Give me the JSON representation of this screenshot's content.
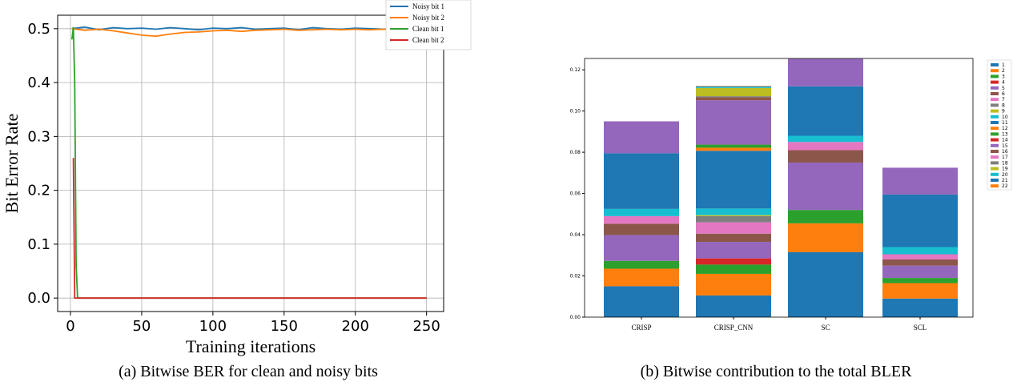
{
  "chart_data": [
    {
      "type": "line",
      "caption": "(a) Bitwise BER for clean and noisy bits",
      "xlabel": "Training iterations",
      "ylabel": "Bit Error Rate",
      "xlim": [
        -9,
        262
      ],
      "ylim": [
        -0.025,
        0.525
      ],
      "xticks": [
        0,
        50,
        100,
        150,
        200,
        250
      ],
      "yticks": [
        0.0,
        0.1,
        0.2,
        0.3,
        0.4,
        0.5
      ],
      "ytick_labels": [
        "0.0",
        "0.1",
        "0.2",
        "0.3",
        "0.4",
        "0.5"
      ],
      "grid": true,
      "legend_position": "top-right",
      "colors": {
        "noisy1": "#1f77b4",
        "noisy2": "#ff7f0e",
        "clean1": "#2ca02c",
        "clean2": "#d62728"
      },
      "series": [
        {
          "name": "Noisy bit 1",
          "x": [
            1,
            10,
            20,
            30,
            40,
            50,
            60,
            70,
            80,
            90,
            100,
            110,
            120,
            130,
            140,
            150,
            160,
            170,
            180,
            190,
            200,
            210,
            220,
            230,
            240,
            250
          ],
          "y": [
            0.5,
            0.503,
            0.498,
            0.502,
            0.5,
            0.501,
            0.499,
            0.502,
            0.5,
            0.498,
            0.501,
            0.5,
            0.502,
            0.499,
            0.5,
            0.501,
            0.498,
            0.502,
            0.5,
            0.499,
            0.501,
            0.5,
            0.499,
            0.502,
            0.497,
            0.501
          ]
        },
        {
          "name": "Noisy bit 2",
          "x": [
            1,
            10,
            20,
            30,
            40,
            50,
            60,
            70,
            80,
            90,
            100,
            110,
            120,
            130,
            140,
            150,
            160,
            170,
            180,
            190,
            200,
            210,
            220,
            230,
            240,
            250
          ],
          "y": [
            0.5,
            0.497,
            0.499,
            0.496,
            0.492,
            0.488,
            0.486,
            0.49,
            0.493,
            0.494,
            0.496,
            0.497,
            0.495,
            0.497,
            0.498,
            0.499,
            0.497,
            0.498,
            0.499,
            0.498,
            0.499,
            0.498,
            0.499,
            0.497,
            0.498,
            0.499
          ]
        },
        {
          "name": "Clean bit 1",
          "x": [
            1,
            2,
            3,
            4,
            5,
            6,
            7,
            250
          ],
          "y": [
            0.48,
            0.503,
            0.4,
            0.06,
            0.0,
            0.0,
            0.0,
            0.0
          ]
        },
        {
          "name": "Clean bit 2",
          "x": [
            2,
            3,
            4,
            250
          ],
          "y": [
            0.26,
            0.0,
            0.0,
            0.0
          ]
        }
      ]
    },
    {
      "type": "bar",
      "stacked": true,
      "caption": "(b) Bitwise contribution to the total BLER",
      "categories": [
        "CRISP",
        "CRISP_CNN",
        "SC",
        "SCL"
      ],
      "ylim": [
        0,
        0.1255
      ],
      "yticks": [
        0.0,
        0.02,
        0.04,
        0.06,
        0.08,
        0.1,
        0.12
      ],
      "ytick_labels": [
        "0.00",
        "0.02",
        "0.04",
        "0.06",
        "0.08",
        "0.10",
        "0.12"
      ],
      "legend_position": "right",
      "series_names": [
        "1",
        "2",
        "3",
        "4",
        "5",
        "6",
        "7",
        "8",
        "9",
        "10",
        "11",
        "12",
        "13",
        "14",
        "15",
        "16",
        "17",
        "18",
        "19",
        "20",
        "21",
        "22"
      ],
      "series_colors": [
        "#1f77b4",
        "#ff7f0e",
        "#2ca02c",
        "#d62728",
        "#9467bd",
        "#8c564b",
        "#e377c2",
        "#7f7f7f",
        "#bcbd22",
        "#17becf",
        "#1f77b4",
        "#ff7f0e",
        "#2ca02c",
        "#d62728",
        "#9467bd",
        "#8c564b",
        "#e377c2",
        "#7f7f7f",
        "#bcbd22",
        "#17becf",
        "#1f77b4",
        "#ff7f0e"
      ],
      "values": [
        [
          0.015,
          0.0105,
          0.0315,
          0.009
        ],
        [
          0.0085,
          0.0105,
          0.014,
          0.0075
        ],
        [
          0.0038,
          0.0045,
          0.0065,
          0.0025
        ],
        [
          0.0,
          0.003,
          0.0,
          0.0
        ],
        [
          0.0125,
          0.008,
          0.023,
          0.006
        ],
        [
          0.0055,
          0.004,
          0.006,
          0.003
        ],
        [
          0.0037,
          0.0055,
          0.004,
          0.0025
        ],
        [
          0.0,
          0.003,
          0.0,
          0.0
        ],
        [
          0.0,
          0.0005,
          0.0,
          0.0
        ],
        [
          0.0035,
          0.0032,
          0.003,
          0.0035
        ],
        [
          0.027,
          0.028,
          0.024,
          0.0255
        ],
        [
          0.0,
          0.0015,
          0.0,
          0.0
        ],
        [
          0.0,
          0.0015,
          0.0,
          0.0
        ],
        [
          0.0,
          0.0,
          0.0,
          0.0
        ],
        [
          0.0155,
          0.0215,
          0.0133,
          0.013
        ],
        [
          0.0,
          0.0015,
          0.0,
          0.0
        ],
        [
          0.0,
          0.0,
          0.0,
          0.0
        ],
        [
          0.0,
          0.0005,
          0.0,
          0.0
        ],
        [
          0.0,
          0.004,
          0.0,
          0.0
        ],
        [
          0.0,
          0.0005,
          0.0,
          0.0
        ],
        [
          0.0,
          0.0003,
          0.0,
          0.0
        ],
        [
          0.0,
          0.0002,
          0.0,
          0.0
        ]
      ]
    }
  ]
}
